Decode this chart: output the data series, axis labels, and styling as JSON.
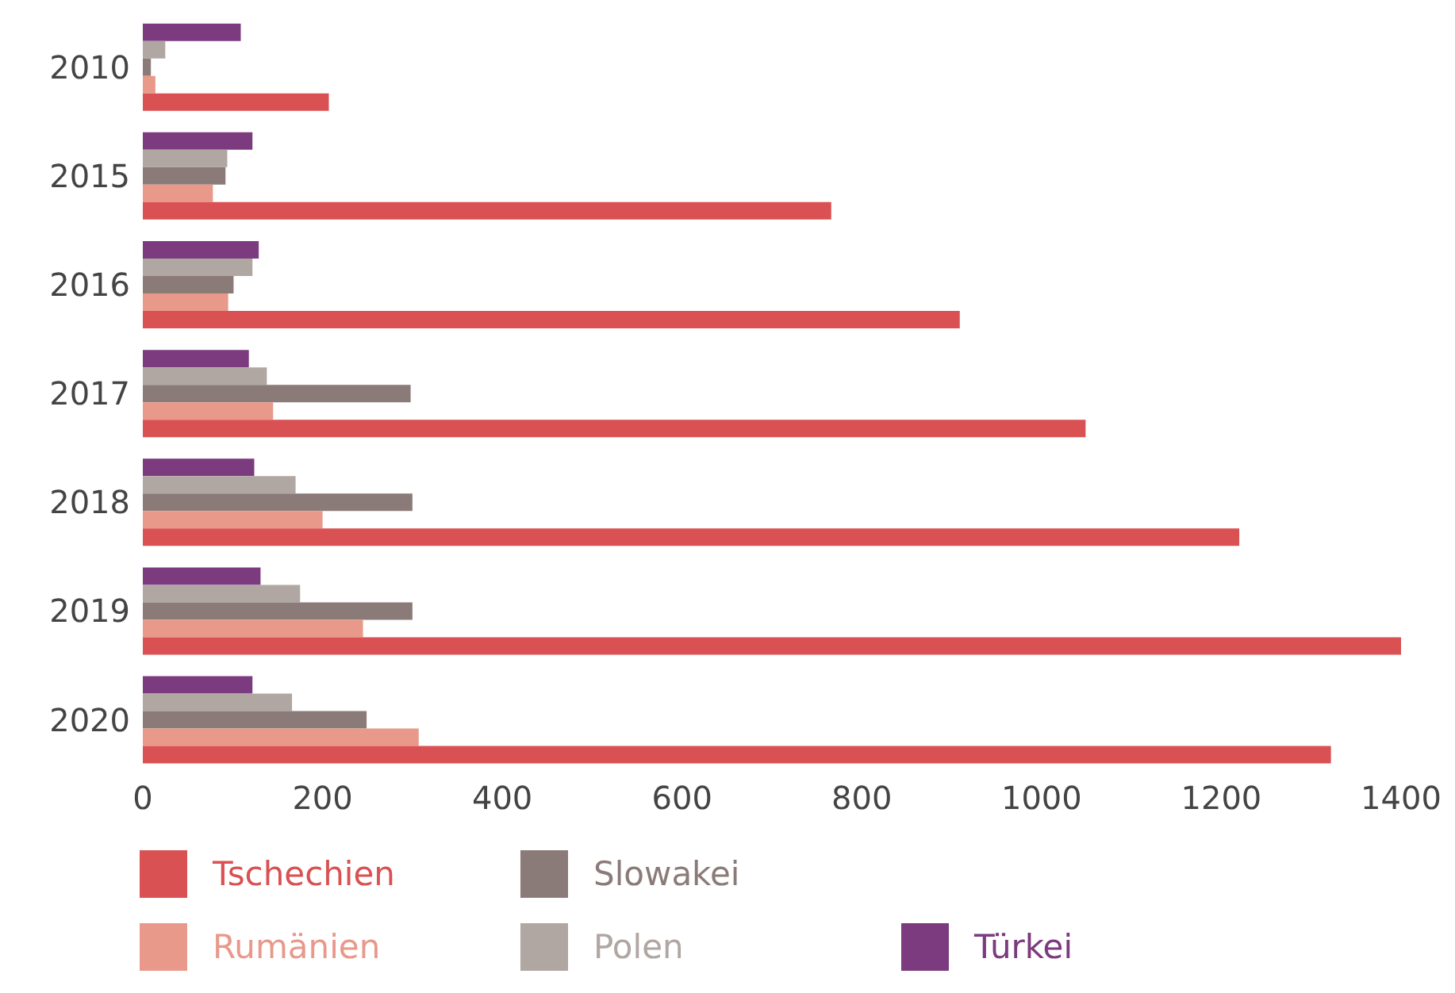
{
  "chart_data": {
    "type": "bar",
    "orientation": "horizontal",
    "categories": [
      "2010",
      "2015",
      "2016",
      "2017",
      "2018",
      "2019",
      "2020"
    ],
    "series": [
      {
        "name": "Türkei",
        "color": "#7b3b7e",
        "values": [
          109,
          122,
          129,
          118,
          124,
          131,
          122
        ]
      },
      {
        "name": "Polen",
        "color": "#b0a6a2",
        "values": [
          25,
          94,
          122,
          138,
          170,
          175,
          166
        ]
      },
      {
        "name": "Slowakei",
        "color": "#8b7b78",
        "values": [
          9,
          92,
          101,
          298,
          300,
          300,
          249
        ]
      },
      {
        "name": "Rumänien",
        "color": "#e8998a",
        "values": [
          14,
          78,
          95,
          145,
          200,
          245,
          307
        ]
      },
      {
        "name": "Tschechien",
        "color": "#d95152",
        "values": [
          207,
          766,
          909,
          1049,
          1220,
          1400,
          1322
        ]
      }
    ],
    "xlim": [
      0,
      1400
    ],
    "xticks": [
      0,
      200,
      400,
      600,
      800,
      1000,
      1200,
      1400
    ],
    "grid": false,
    "legend": "bottom"
  }
}
